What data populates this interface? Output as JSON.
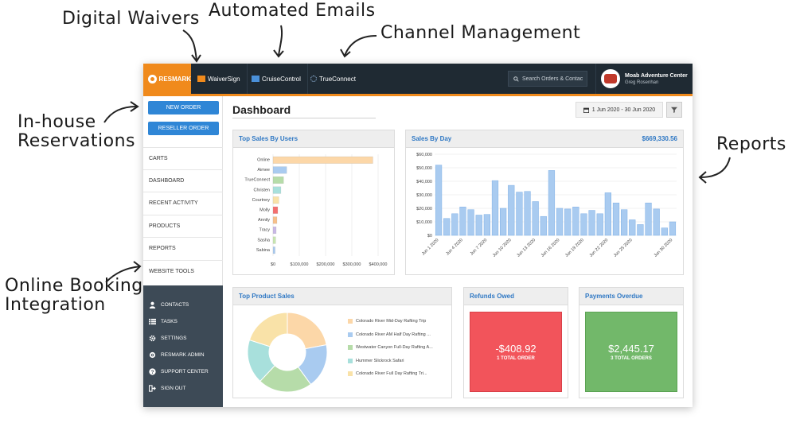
{
  "callouts": {
    "waivers": "Digital Waivers",
    "emails": "Automated Emails",
    "channel": "Channel Management",
    "inhouse": "In-house\nReservations",
    "reports": "Reports",
    "online": "Online Booking\nIntegration"
  },
  "topbar": {
    "brand": "RESMARK",
    "nav": [
      "WaiverSign",
      "CruiseControl",
      "TrueConnect"
    ],
    "search_placeholder": "Search Orders & Contac",
    "account_name": "Moab Adventure Center",
    "account_user": "Greg Rosenhan"
  },
  "sidebar": {
    "new_order": "NEW ORDER",
    "reseller_order": "RESELLER ORDER",
    "links": [
      "CARTS",
      "DASHBOARD",
      "RECENT ACTIVITY",
      "PRODUCTS",
      "REPORTS",
      "WEBSITE TOOLS"
    ],
    "dark_links": [
      {
        "label": "CONTACTS",
        "icon": "contacts-icon"
      },
      {
        "label": "TASKS",
        "icon": "tasks-icon"
      },
      {
        "label": "SETTINGS",
        "icon": "gear-icon"
      },
      {
        "label": "RESMARK ADMIN",
        "icon": "admin-icon"
      },
      {
        "label": "SUPPORT CENTER",
        "icon": "help-icon"
      },
      {
        "label": "SIGN OUT",
        "icon": "signout-icon"
      }
    ]
  },
  "main": {
    "title": "Dashboard",
    "date_range": "1 Jun 2020 - 30 Jun 2020"
  },
  "panels": {
    "top_sales_users": "Top Sales By Users",
    "sales_by_day": "Sales By Day",
    "sales_by_day_total": "$669,330.56",
    "top_product_sales": "Top Product Sales",
    "refunds_owed": "Refunds Owed",
    "refunds_value": "-$408.92",
    "refunds_sub": "1 TOTAL ORDER",
    "payments_overdue": "Payments Overdue",
    "payments_value": "$2,445.17",
    "payments_sub": "3 TOTAL ORDERS"
  },
  "colors": {
    "orange": "#f08a1c",
    "blue": "#2f86d6",
    "refund_red": "#f2545b",
    "overdue_green": "#72b86a",
    "bar_blue": "#a9cbf0"
  },
  "chart_data": [
    {
      "type": "bar",
      "orientation": "horizontal",
      "title": "Top Sales By Users",
      "categories": [
        "Online",
        "Aimee",
        "TrueConnect",
        "Christen",
        "Courtney",
        "Molly",
        "Annily",
        "Tracy",
        "Sasha",
        "Sabina"
      ],
      "values": [
        380000,
        52000,
        40000,
        30000,
        22000,
        18000,
        15000,
        12000,
        10000,
        8000
      ],
      "colors": [
        "#fcd7a8",
        "#a9cbf0",
        "#b6dca9",
        "#a8e0dc",
        "#f9e2a8",
        "#f46f6f",
        "#f7c08a",
        "#c9b8e6",
        "#c8e6b0",
        "#a9cbf0"
      ],
      "xticks": [
        "$0",
        "$100,000",
        "$200,000",
        "$300,000",
        "$400,000"
      ],
      "xlim": [
        0,
        400000
      ],
      "grid": true
    },
    {
      "type": "bar",
      "title": "Sales By Day",
      "categories": [
        "1",
        "2",
        "3",
        "4",
        "5",
        "6",
        "7",
        "8",
        "9",
        "10",
        "11",
        "12",
        "13",
        "14",
        "15",
        "16",
        "17",
        "18",
        "19",
        "20",
        "21",
        "22",
        "23",
        "24",
        "25",
        "26",
        "27",
        "28",
        "29",
        "30"
      ],
      "values": [
        52000,
        12500,
        16000,
        21000,
        19000,
        15000,
        15500,
        40500,
        20000,
        37000,
        32000,
        32500,
        25000,
        14000,
        48000,
        20000,
        19500,
        21000,
        16000,
        18500,
        16000,
        31500,
        24000,
        19000,
        11500,
        8000,
        24000,
        19500,
        5500,
        10000
      ],
      "xticks": [
        "Jun 1 2020",
        "Jun 4 2020",
        "Jun 7 2020",
        "Jun 10 2020",
        "Jun 13 2020",
        "Jun 16 2020",
        "Jun 19 2020",
        "Jun 22 2020",
        "Jun 25 2020",
        "Jun 30 2020"
      ],
      "yticks": [
        "$0",
        "$10,000",
        "$20,000",
        "$30,000",
        "$40,000",
        "$50,000",
        "$60,000"
      ],
      "ylim": [
        0,
        60000
      ],
      "grid": true
    },
    {
      "type": "pie",
      "title": "Top Product Sales",
      "donut": true,
      "labels": [
        "Colorado River Mid-Day Rafting Trip",
        "Colorado River AM Half Day Rafting ...",
        "Westwater Canyon Full-Day Rafting A...",
        "Hummer Slickrock Safari",
        "Colorado River Full Day Rafting Tri..."
      ],
      "values": [
        22,
        18,
        22,
        18,
        20
      ],
      "colors": [
        "#fcd7a8",
        "#a9cbf0",
        "#b6dca9",
        "#a8e0dc",
        "#f9e2a8"
      ]
    }
  ]
}
